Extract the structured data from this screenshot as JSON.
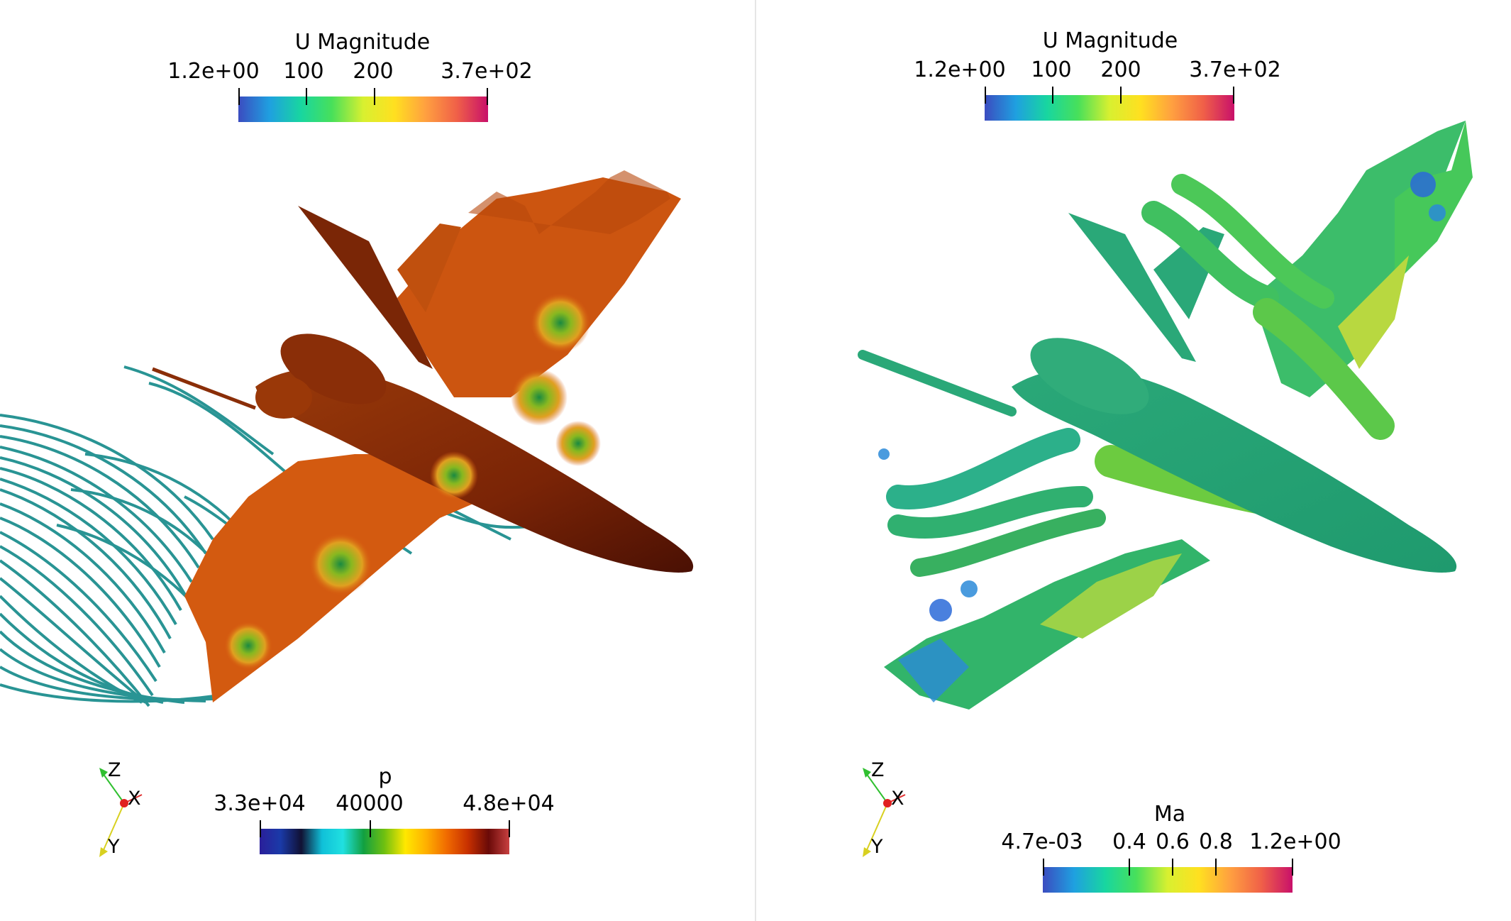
{
  "left_view": {
    "top_colorbar": {
      "title": "U Magnitude",
      "ticks": [
        "1.2e+00",
        "100",
        "200",
        "3.7e+02"
      ],
      "colors": [
        "#3b4cc0",
        "#1fa0e0",
        "#18d6a0",
        "#48e05a",
        "#d8f030",
        "#ffe020",
        "#ffa040",
        "#f06048",
        "#c8106a"
      ]
    },
    "bottom_colorbar": {
      "title": "p",
      "ticks": [
        "3.3e+04",
        "40000",
        "4.8e+04"
      ],
      "colors": [
        "#2a1f9a",
        "#1a3aa8",
        "#111133",
        "#10c0d8",
        "#20e0e0",
        "#12a040",
        "#70c010",
        "#ffe800",
        "#ffb000",
        "#f06a00",
        "#c83000",
        "#6a0a08",
        "#c84040"
      ]
    },
    "axes": {
      "z": "Z",
      "x": "X",
      "y": "Y"
    }
  },
  "right_view": {
    "top_colorbar": {
      "title": "U Magnitude",
      "ticks": [
        "1.2e+00",
        "100",
        "200",
        "3.7e+02"
      ],
      "colors": [
        "#3b4cc0",
        "#1fa0e0",
        "#18d6a0",
        "#48e05a",
        "#d8f030",
        "#ffe020",
        "#ffa040",
        "#f06048",
        "#c8106a"
      ]
    },
    "bottom_colorbar": {
      "title": "Ma",
      "ticks": [
        "4.7e-03",
        "0.4",
        "0.6",
        "0.8",
        "1.2e+00"
      ],
      "colors": [
        "#3b4cc0",
        "#1fa0e0",
        "#18d6a0",
        "#48e05a",
        "#d8f030",
        "#ffe020",
        "#ffa040",
        "#f06048",
        "#c8106a"
      ]
    },
    "axes": {
      "z": "Z",
      "x": "X",
      "y": "Y"
    }
  }
}
